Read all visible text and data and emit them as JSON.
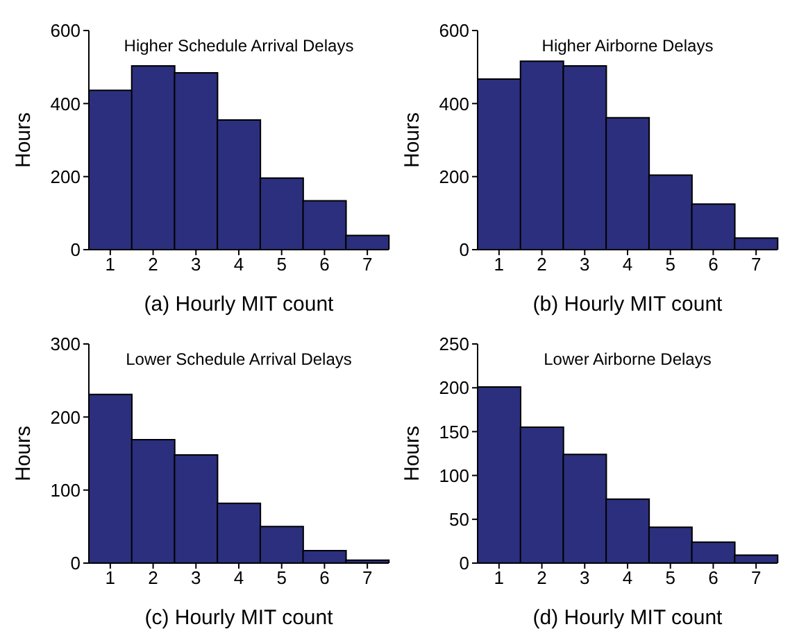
{
  "chart_data": [
    {
      "type": "bar",
      "title": "Higher Schedule Arrival Delays",
      "xlabel": "(a) Hourly MIT count",
      "ylabel": "Hours",
      "categories": [
        "1",
        "2",
        "3",
        "4",
        "5",
        "6",
        "7"
      ],
      "values": [
        436,
        503,
        484,
        355,
        196,
        134,
        39
      ],
      "color": "#2b2f7d",
      "ylim": [
        0,
        600
      ],
      "yticks": [
        0,
        200,
        400,
        600
      ]
    },
    {
      "type": "bar",
      "title": "Higher Airborne Delays",
      "xlabel": "(b) Hourly MIT count",
      "ylabel": "Hours",
      "categories": [
        "1",
        "2",
        "3",
        "4",
        "5",
        "6",
        "7"
      ],
      "values": [
        467,
        516,
        503,
        361,
        204,
        125,
        32
      ],
      "color": "#2b2f7d",
      "ylim": [
        0,
        600
      ],
      "yticks": [
        0,
        200,
        400,
        600
      ]
    },
    {
      "type": "bar",
      "title": "Lower Schedule Arrival Delays",
      "xlabel": "(c) Hourly MIT count",
      "ylabel": "Hours",
      "categories": [
        "1",
        "2",
        "3",
        "4",
        "5",
        "6",
        "7"
      ],
      "values": [
        231,
        169,
        148,
        82,
        50,
        17,
        4
      ],
      "color": "#2b2f7d",
      "ylim": [
        0,
        300
      ],
      "yticks": [
        0,
        100,
        200,
        300
      ]
    },
    {
      "type": "bar",
      "title": "Lower Airborne Delays",
      "xlabel": "(d) Hourly MIT count",
      "ylabel": "Hours",
      "categories": [
        "1",
        "2",
        "3",
        "4",
        "5",
        "6",
        "7"
      ],
      "values": [
        201,
        155,
        124,
        73,
        41,
        24,
        9
      ],
      "color": "#2b2f7d",
      "ylim": [
        0,
        250
      ],
      "yticks": [
        0,
        50,
        100,
        150,
        200,
        250
      ]
    }
  ]
}
